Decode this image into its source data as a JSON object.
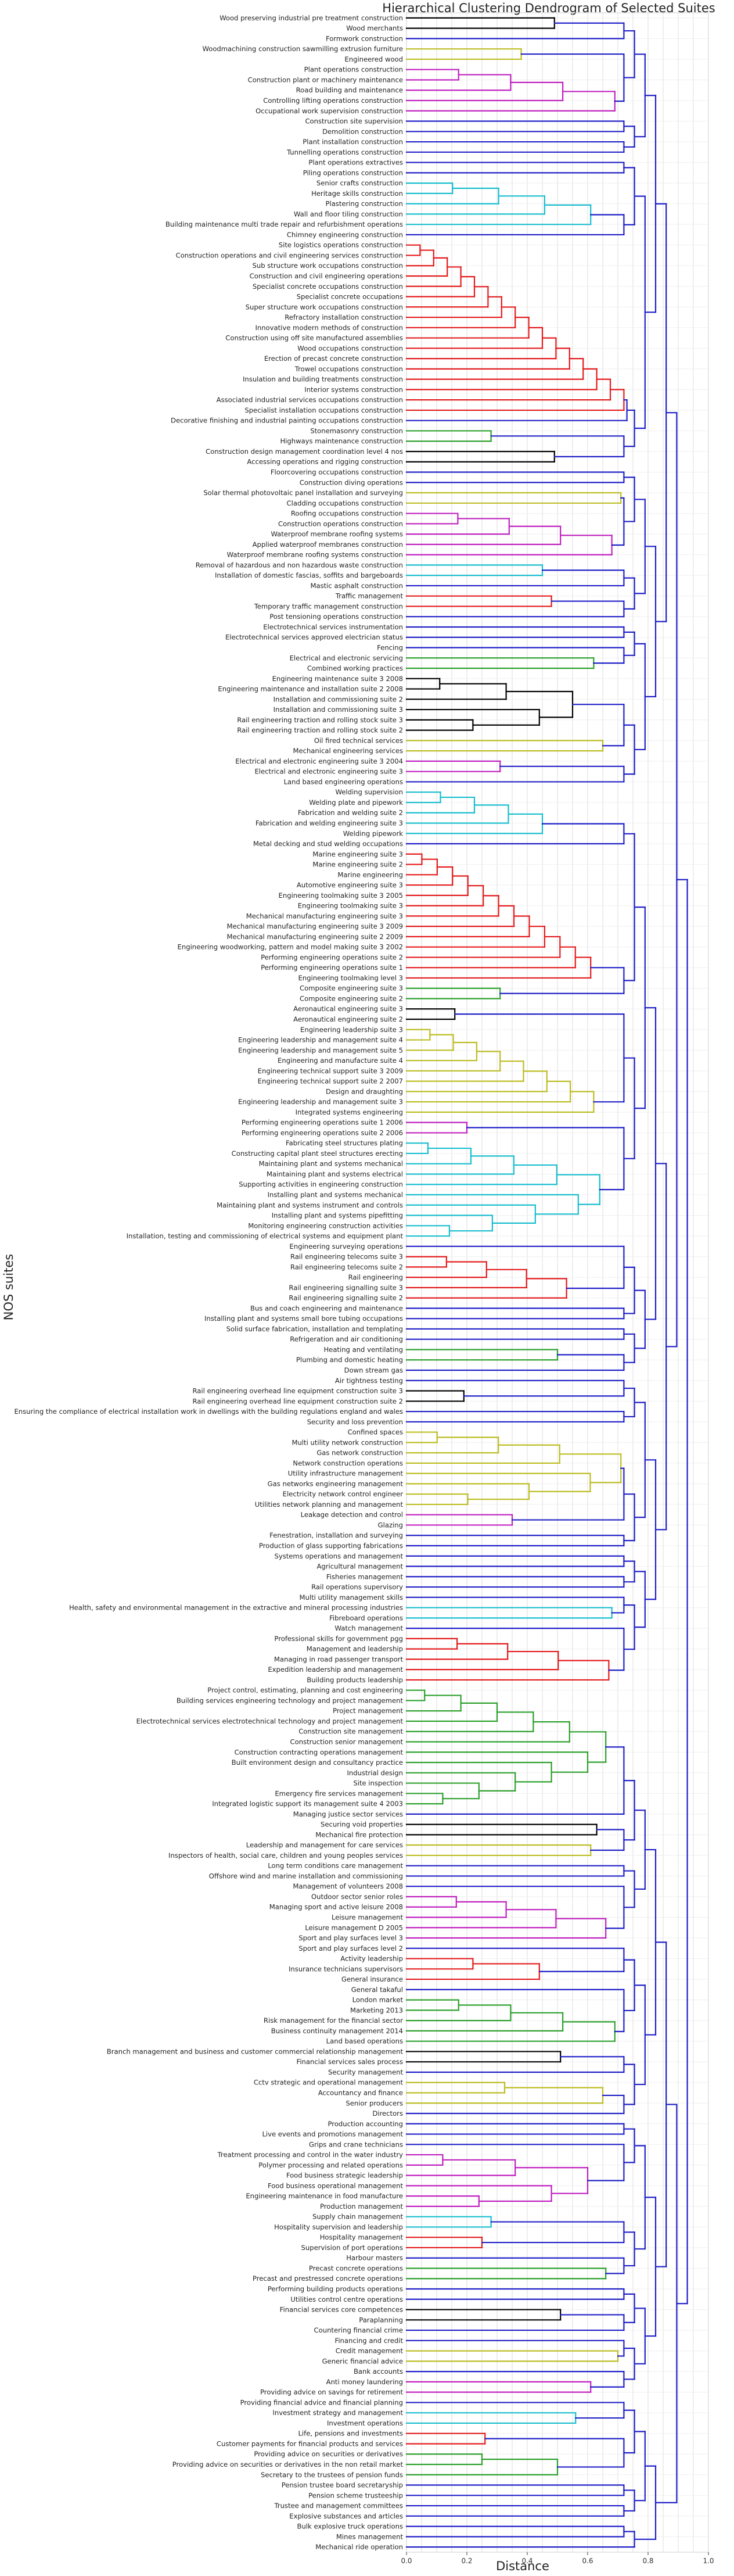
{
  "chart_data": {
    "type": "dendrogram",
    "title": "Hierarchical Clustering Dendrogram of Selected Suites",
    "xlabel": "Distance",
    "ylabel": "NOS suites",
    "xlim": [
      0,
      1.0
    ],
    "xticks": [
      "0.0",
      "0.2",
      "0.4",
      "0.6",
      "0.8",
      "1.0"
    ],
    "grid": true,
    "orientation": "horizontal",
    "colors": {
      "black": "#000000",
      "yellow": "#bcbd22",
      "magenta": "#c020c0",
      "blue": "#1f1fc8",
      "cyan": "#17becf",
      "red": "#e41a1c",
      "green": "#2ca02c"
    },
    "leaves": [
      "Wood preserving industrial pre treatment construction",
      "Wood merchants",
      "Formwork construction",
      "Woodmachining construction sawmilling extrusion furniture",
      "Engineered wood",
      "Plant operations construction",
      "Construction plant or machinery maintenance",
      "Road building and maintenance",
      "Controlling lifting operations construction",
      "Occupational work supervision construction",
      "Construction site supervision",
      "Demolition construction",
      "Plant installation construction",
      "Tunnelling operations construction",
      "Plant operations extractives",
      "Piling operations construction",
      "Senior crafts construction",
      "Heritage skills construction",
      "Plastering construction",
      "Wall and floor tiling construction",
      "Building maintenance multi trade repair and refurbishment operations",
      "Chimney engineering construction",
      "Site logistics operations construction",
      "Construction operations and civil engineering services construction",
      "Sub structure work occupations construction",
      "Construction and civil engineering operations",
      "Specialist concrete occupations construction",
      "Specialist concrete occupations",
      "Super structure work occupations construction",
      "Refractory installation construction",
      "Innovative modern methods of construction",
      "Construction using off site manufactured assemblies",
      "Wood occupations construction",
      "Erection of precast concrete construction",
      "Trowel occupations construction",
      "Insulation and building treatments construction",
      "Interior systems construction",
      "Associated industrial services occupations construction",
      "Specialist installation occupations construction",
      "Decorative finishing and industrial painting occupations construction",
      "Stonemasonry construction",
      "Highways maintenance construction",
      "Construction design management coordination level 4 nos",
      "Accessing operations and rigging construction",
      "Floorcovering occupations construction",
      "Construction diving operations",
      "Solar thermal photovoltaic panel installation and surveying",
      "Cladding occupations construction",
      "Roofing occupations construction",
      "Construction operations construction",
      "Waterproof membrane roofing systems",
      "Applied waterproof membranes construction",
      "Waterproof membrane roofing systems construction",
      "Removal of hazardous and non hazardous waste construction",
      "Installation of domestic fascias, soffits and bargeboards",
      "Mastic asphalt construction",
      "Traffic management",
      "Temporary traffic management construction",
      "Post tensioning operations construction",
      "Electrotechnical services instrumentation",
      "Electrotechnical services approved electrician status",
      "Fencing",
      "Electrical and electronic servicing",
      "Combined working practices",
      "Engineering maintenance suite 3 2008",
      "Engineering maintenance and installation suite 2 2008",
      "Installation and commissioning suite 2",
      "Installation and commissioning suite 3",
      "Rail engineering traction and rolling stock suite 3",
      "Rail engineering traction and rolling stock suite 2",
      "Oil fired technical services",
      "Mechanical engineering services",
      "Electrical and electronic engineering suite 3 2004",
      "Electrical and electronic engineering suite 3",
      "Land based engineering operations",
      "Welding supervision",
      "Welding plate and pipework",
      "Fabrication and welding suite 2",
      "Fabrication and welding engineering suite 3",
      "Welding pipework",
      "Metal decking and stud welding occupations",
      "Marine engineering suite 3",
      "Marine engineering suite 2",
      "Marine engineering",
      "Automotive engineering suite 3",
      "Engineering toolmaking suite 3 2005",
      "Engineering toolmaking suite 3",
      "Mechanical manufacturing engineering suite 3",
      "Mechanical manufacturing engineering suite 3 2009",
      "Mechanical manufacturing engineering suite 2 2009",
      "Engineering woodworking, pattern and model making suite 3 2002",
      "Performing engineering operations suite 2",
      "Performing engineering operations suite 1",
      "Engineering toolmaking level 3",
      "Composite engineering suite 3",
      "Composite engineering suite 2",
      "Aeronautical engineering suite 3",
      "Aeronautical engineering suite 2",
      "Engineering leadership suite 3",
      "Engineering leadership and management suite 4",
      "Engineering leadership and management suite 5",
      "Engineering and manufacture suite 4",
      "Engineering technical support suite 3 2009",
      "Engineering technical support suite 2 2007",
      "Design and draughting",
      "Engineering leadership and management suite 3",
      "Integrated systems engineering",
      "Performing engineering operations suite 1 2006",
      "Performing engineering operations suite 2 2006",
      "Fabricating steel structures plating",
      "Constructing capital plant steel structures erecting",
      "Maintaining plant and systems mechanical",
      "Maintaining plant and systems electrical",
      "Supporting activities in engineering construction",
      "Installing plant and systems mechanical",
      "Maintaining plant and systems instrument and controls",
      "Installing plant and systems pipefitting",
      "Monitoring engineering construction activities",
      "Installation, testing and commissioning of electrical systems and equipment plant",
      "Engineering surveying operations",
      "Rail engineering telecoms suite 3",
      "Rail engineering telecoms suite 2",
      "Rail engineering",
      "Rail engineering signalling suite 3",
      "Rail engineering signalling suite 2",
      "Bus and coach engineering and maintenance",
      "Installing plant and systems small bore tubing occupations",
      "Solid surface fabrication, installation and templating",
      "Refrigeration and air conditioning",
      "Heating and ventilating",
      "Plumbing and domestic heating",
      "Down stream gas",
      "Air tightness testing",
      "Rail engineering overhead line equipment construction suite 3",
      "Rail engineering overhead line equipment construction suite 2",
      "Ensuring the compliance of electrical installation work in dwellings with the building regulations england and wales",
      "Security and loss prevention",
      "Confined spaces",
      "Multi utility network construction",
      "Gas network construction",
      "Network construction operations",
      "Utility infrastructure management",
      "Gas networks engineering management",
      "Electricity network control engineer",
      "Utilities network planning and management",
      "Leakage detection and control",
      "Glazing",
      "Fenestration, installation and surveying",
      "Production of glass supporting fabrications",
      "Systems operations and management",
      "Agricultural management",
      "Fisheries management",
      "Rail operations supervisory",
      "Multi utility management skills",
      "Health, safety and environmental management in the extractive and mineral processing industries",
      "Fibreboard operations",
      "Watch management",
      "Professional skills for government pgg",
      "Management and leadership",
      "Managing in road passenger transport",
      "Expedition leadership and management",
      "Building products leadership",
      "Project control, estimating, planning and cost engineering",
      "Building services engineering technology and project management",
      "Project management",
      "Electrotechnical services electrotechnical technology and project management",
      "Construction site management",
      "Construction senior management",
      "Construction contracting operations management",
      "Built environment design and consultancy practice",
      "Industrial design",
      "Site inspection",
      "Emergency fire services management",
      "Integrated logistic support its management suite 4 2003",
      "Managing justice sector services",
      "Securing void properties",
      "Mechanical fire protection",
      "Leadership and management for care services",
      "Inspectors of health, social care, children and young peoples services",
      "Long term conditions care management",
      "Offshore wind and marine installation and commissioning",
      "Management of volunteers 2008",
      "Outdoor sector senior roles",
      "Managing sport and active leisure 2008",
      "Leisure management",
      "Leisure management D 2005",
      "Sport and play surfaces level 3",
      "Sport and play surfaces level 2",
      "Activity leadership",
      "Insurance technicians supervisors",
      "General insurance",
      "General takaful",
      "London market",
      "Marketing 2013",
      "Risk management for the financial sector",
      "Business continuity management 2014",
      "Land based operations",
      "Branch management and business and customer commercial relationship management",
      "Financial services sales process",
      "Security management",
      "Cctv strategic and operational management",
      "Accountancy and finance",
      "Senior producers",
      "Directors",
      "Production accounting",
      "Live events and promotions management",
      "Grips and crane technicians",
      "Treatment processing and control in the water industry",
      "Polymer processing and related operations",
      "Food business strategic leadership",
      "Food business operational management",
      "Engineering maintenance in food manufacture",
      "Production management",
      "Supply chain management",
      "Hospitality supervision and leadership",
      "Hospitality management",
      "Supervision of port operations",
      "Harbour masters",
      "Precast concrete operations",
      "Precast and prestressed concrete operations",
      "Performing building products operations",
      "Utilities control centre operations",
      "Financial services core competences",
      "Paraplanning",
      "Countering financial crime",
      "Financing and credit",
      "Credit management",
      "Generic financial advice",
      "Bank accounts",
      "Anti money laundering",
      "Providing advice on savings for retirement",
      "Providing financial advice and financial planning",
      "Investment strategy and management",
      "Investment operations",
      "Life, pensions and investments",
      "Customer payments for financial products and services",
      "Providing advice on securities or derivatives",
      "Providing advice on securities or derivatives in the non retail market",
      "Secretary to the trustees of pension funds",
      "Pension trustee board secretaryship",
      "Pension scheme trusteeship",
      "Trustee and management committees",
      "Explosive substances and articles",
      "Bulk explosive truck operations",
      "Mines management",
      "Mechanical ride operation"
    ],
    "clusters": [
      {
        "color": "black",
        "leaves": [
          0,
          1
        ],
        "height": 0.49
      },
      {
        "color": "yellow",
        "leaves": [
          3,
          4
        ],
        "height": 0.38
      },
      {
        "color": "magenta",
        "leaves": [
          5,
          6,
          7,
          8,
          9
        ],
        "height": 0.69
      },
      {
        "color": "cyan",
        "leaves": [
          16,
          17,
          18,
          19,
          20
        ],
        "height": 0.61
      },
      {
        "color": "red",
        "leaves": [
          22,
          23,
          24,
          25,
          26,
          27,
          28,
          29,
          30,
          31,
          32,
          33,
          34,
          35,
          36,
          37,
          38
        ],
        "height": 0.72
      },
      {
        "color": "green",
        "leaves": [
          40,
          41
        ],
        "height": 0.28
      },
      {
        "color": "black",
        "leaves": [
          42,
          43
        ],
        "height": 0.49
      },
      {
        "color": "yellow",
        "leaves": [
          46,
          47
        ],
        "height": 0.71
      },
      {
        "color": "magenta",
        "leaves": [
          48,
          49,
          50,
          51,
          52
        ],
        "height": 0.68
      },
      {
        "color": "cyan",
        "leaves": [
          53,
          54
        ],
        "height": 0.45
      },
      {
        "color": "red",
        "leaves": [
          56,
          57
        ],
        "height": 0.48
      },
      {
        "color": "green",
        "leaves": [
          62,
          63
        ],
        "height": 0.62
      },
      {
        "color": "black",
        "leaves": [
          64,
          65,
          66,
          67,
          68,
          69
        ],
        "height": 0.55
      },
      {
        "color": "yellow",
        "leaves": [
          70,
          71
        ],
        "height": 0.65
      },
      {
        "color": "magenta",
        "leaves": [
          72,
          73
        ],
        "height": 0.31
      },
      {
        "color": "cyan",
        "leaves": [
          75,
          76,
          77,
          78,
          79
        ],
        "height": 0.45
      },
      {
        "color": "red",
        "leaves": [
          81,
          82,
          83,
          84,
          85,
          86,
          87,
          88,
          89,
          90,
          91,
          92,
          93
        ],
        "height": 0.61
      },
      {
        "color": "green",
        "leaves": [
          94,
          95
        ],
        "height": 0.31
      },
      {
        "color": "black",
        "leaves": [
          96,
          97
        ],
        "height": 0.16
      },
      {
        "color": "yellow",
        "leaves": [
          98,
          99,
          100,
          101,
          102,
          103,
          104,
          105,
          106
        ],
        "height": 0.62
      },
      {
        "color": "magenta",
        "leaves": [
          107,
          108
        ],
        "height": 0.2
      },
      {
        "color": "cyan",
        "leaves": [
          109,
          110,
          111,
          112,
          113,
          114,
          115,
          116,
          117,
          118
        ],
        "height": 0.64
      },
      {
        "color": "red",
        "leaves": [
          120,
          121,
          122,
          123,
          124
        ],
        "height": 0.53
      },
      {
        "color": "green",
        "leaves": [
          129,
          130
        ],
        "height": 0.5
      },
      {
        "color": "black",
        "leaves": [
          133,
          134
        ],
        "height": 0.19
      },
      {
        "color": "yellow",
        "leaves": [
          137,
          138,
          139,
          140,
          141,
          142,
          143,
          144
        ],
        "height": 0.71
      },
      {
        "color": "magenta",
        "leaves": [
          145,
          146
        ],
        "height": 0.35
      },
      {
        "color": "cyan",
        "leaves": [
          154,
          155
        ],
        "height": 0.68
      },
      {
        "color": "red",
        "leaves": [
          157,
          158,
          159,
          160,
          161
        ],
        "height": 0.67
      },
      {
        "color": "green",
        "leaves": [
          162,
          163,
          164,
          165,
          166,
          167,
          168,
          169,
          170,
          171,
          172,
          173
        ],
        "height": 0.66
      },
      {
        "color": "black",
        "leaves": [
          175,
          176
        ],
        "height": 0.63
      },
      {
        "color": "yellow",
        "leaves": [
          177,
          178
        ],
        "height": 0.61
      },
      {
        "color": "magenta",
        "leaves": [
          182,
          183,
          184,
          185,
          186
        ],
        "height": 0.66
      },
      {
        "color": "red",
        "leaves": [
          188,
          189,
          190
        ],
        "height": 0.44
      },
      {
        "color": "green",
        "leaves": [
          192,
          193,
          194,
          195,
          196
        ],
        "height": 0.69
      },
      {
        "color": "black",
        "leaves": [
          197,
          198
        ],
        "height": 0.51
      },
      {
        "color": "yellow",
        "leaves": [
          200,
          201,
          202
        ],
        "height": 0.65
      },
      {
        "color": "magenta",
        "leaves": [
          207,
          208,
          209,
          210,
          211,
          212
        ],
        "height": 0.6
      },
      {
        "color": "cyan",
        "leaves": [
          213,
          214
        ],
        "height": 0.28
      },
      {
        "color": "red",
        "leaves": [
          215,
          216
        ],
        "height": 0.25
      },
      {
        "color": "green",
        "leaves": [
          218,
          219
        ],
        "height": 0.66
      },
      {
        "color": "black",
        "leaves": [
          222,
          223
        ],
        "height": 0.51
      },
      {
        "color": "yellow",
        "leaves": [
          226,
          227
        ],
        "height": 0.7
      },
      {
        "color": "magenta",
        "leaves": [
          229,
          230
        ],
        "height": 0.61
      },
      {
        "color": "cyan",
        "leaves": [
          232,
          233
        ],
        "height": 0.56
      },
      {
        "color": "red",
        "leaves": [
          234,
          235
        ],
        "height": 0.26
      },
      {
        "color": "green",
        "leaves": [
          236,
          237,
          238
        ],
        "height": 0.5
      }
    ]
  }
}
